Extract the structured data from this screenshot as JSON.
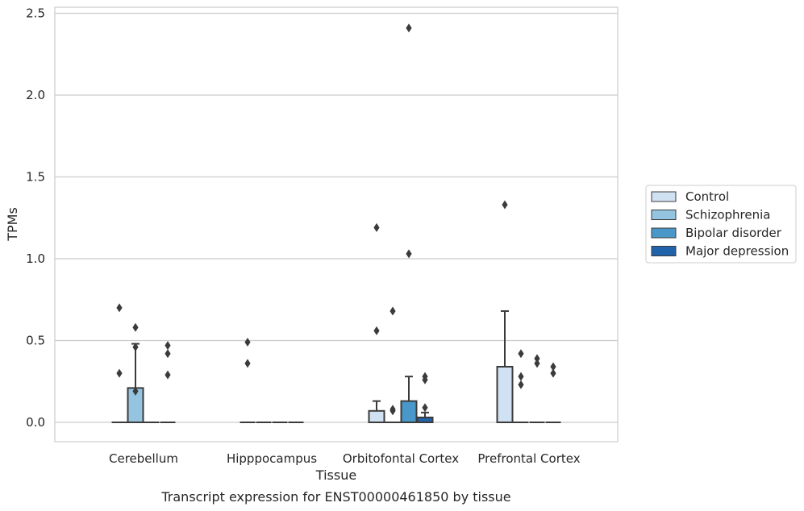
{
  "chart_data": {
    "type": "box",
    "title": "",
    "caption": "Transcript expression for ENST00000461850 by tissue",
    "xlabel": "Tissue",
    "ylabel": "TPMs",
    "ylim": [
      -0.12,
      2.54
    ],
    "yticks": [
      "0.0",
      "0.5",
      "1.0",
      "1.5",
      "2.0",
      "2.5"
    ],
    "ytick_values": [
      0,
      0.5,
      1.0,
      1.5,
      2.0,
      2.5
    ],
    "grid": "horizontal",
    "legend_position": "right",
    "categories": [
      "Cerebellum",
      "Hipppocampus",
      "Orbitofontal Cortex",
      "Prefrontal Cortex"
    ],
    "series": [
      {
        "name": "Control",
        "color": "#d0e1f2",
        "boxes": [
          {
            "q1": 0,
            "median": 0,
            "q3": 0,
            "whislo": 0,
            "whishi": 0,
            "fliers": [
              0.7,
              0.3
            ]
          },
          {
            "q1": 0,
            "median": 0,
            "q3": 0,
            "whislo": 0,
            "whishi": 0,
            "fliers": [
              0.49,
              0.36
            ]
          },
          {
            "q1": 0,
            "median": 0,
            "q3": 0.07,
            "whislo": 0,
            "whishi": 0.13,
            "fliers": [
              1.19,
              0.56
            ]
          },
          {
            "q1": 0,
            "median": 0,
            "q3": 0.34,
            "whislo": 0,
            "whishi": 0.68,
            "fliers": [
              1.33
            ]
          }
        ]
      },
      {
        "name": "Schizophrenia",
        "color": "#94c4df",
        "boxes": [
          {
            "q1": 0,
            "median": 0,
            "q3": 0.21,
            "whislo": 0,
            "whishi": 0.48,
            "fliers": [
              0.58,
              0.46,
              0.19
            ]
          },
          {
            "q1": 0,
            "median": 0,
            "q3": 0,
            "whislo": 0,
            "whishi": 0,
            "fliers": []
          },
          {
            "q1": 0,
            "median": 0,
            "q3": 0,
            "whislo": 0,
            "whishi": 0,
            "fliers": [
              0.68,
              0.08,
              0.07
            ]
          },
          {
            "q1": 0,
            "median": 0,
            "q3": 0,
            "whislo": 0,
            "whishi": 0,
            "fliers": [
              0.42,
              0.28,
              0.23
            ]
          }
        ]
      },
      {
        "name": "Bipolar disorder",
        "color": "#4a98c9",
        "boxes": [
          {
            "q1": 0,
            "median": 0,
            "q3": 0,
            "whislo": 0,
            "whishi": 0,
            "fliers": []
          },
          {
            "q1": 0,
            "median": 0,
            "q3": 0,
            "whislo": 0,
            "whishi": 0,
            "fliers": []
          },
          {
            "q1": 0,
            "median": 0,
            "q3": 0.13,
            "whislo": 0,
            "whishi": 0.28,
            "fliers": [
              2.41,
              1.03
            ]
          },
          {
            "q1": 0,
            "median": 0,
            "q3": 0,
            "whislo": 0,
            "whishi": 0,
            "fliers": [
              0.39,
              0.36
            ]
          }
        ]
      },
      {
        "name": "Major depression",
        "color": "#2163aa",
        "boxes": [
          {
            "q1": 0,
            "median": 0,
            "q3": 0,
            "whislo": 0,
            "whishi": 0,
            "fliers": [
              0.47,
              0.42,
              0.29
            ]
          },
          {
            "q1": 0,
            "median": 0,
            "q3": 0,
            "whislo": 0,
            "whishi": 0,
            "fliers": []
          },
          {
            "q1": 0,
            "median": 0,
            "q3": 0.03,
            "whislo": 0,
            "whishi": 0.06,
            "fliers": [
              0.28,
              0.26,
              0.09
            ]
          },
          {
            "q1": 0,
            "median": 0,
            "q3": 0,
            "whislo": 0,
            "whishi": 0,
            "fliers": [
              0.34,
              0.3
            ]
          }
        ]
      }
    ]
  }
}
